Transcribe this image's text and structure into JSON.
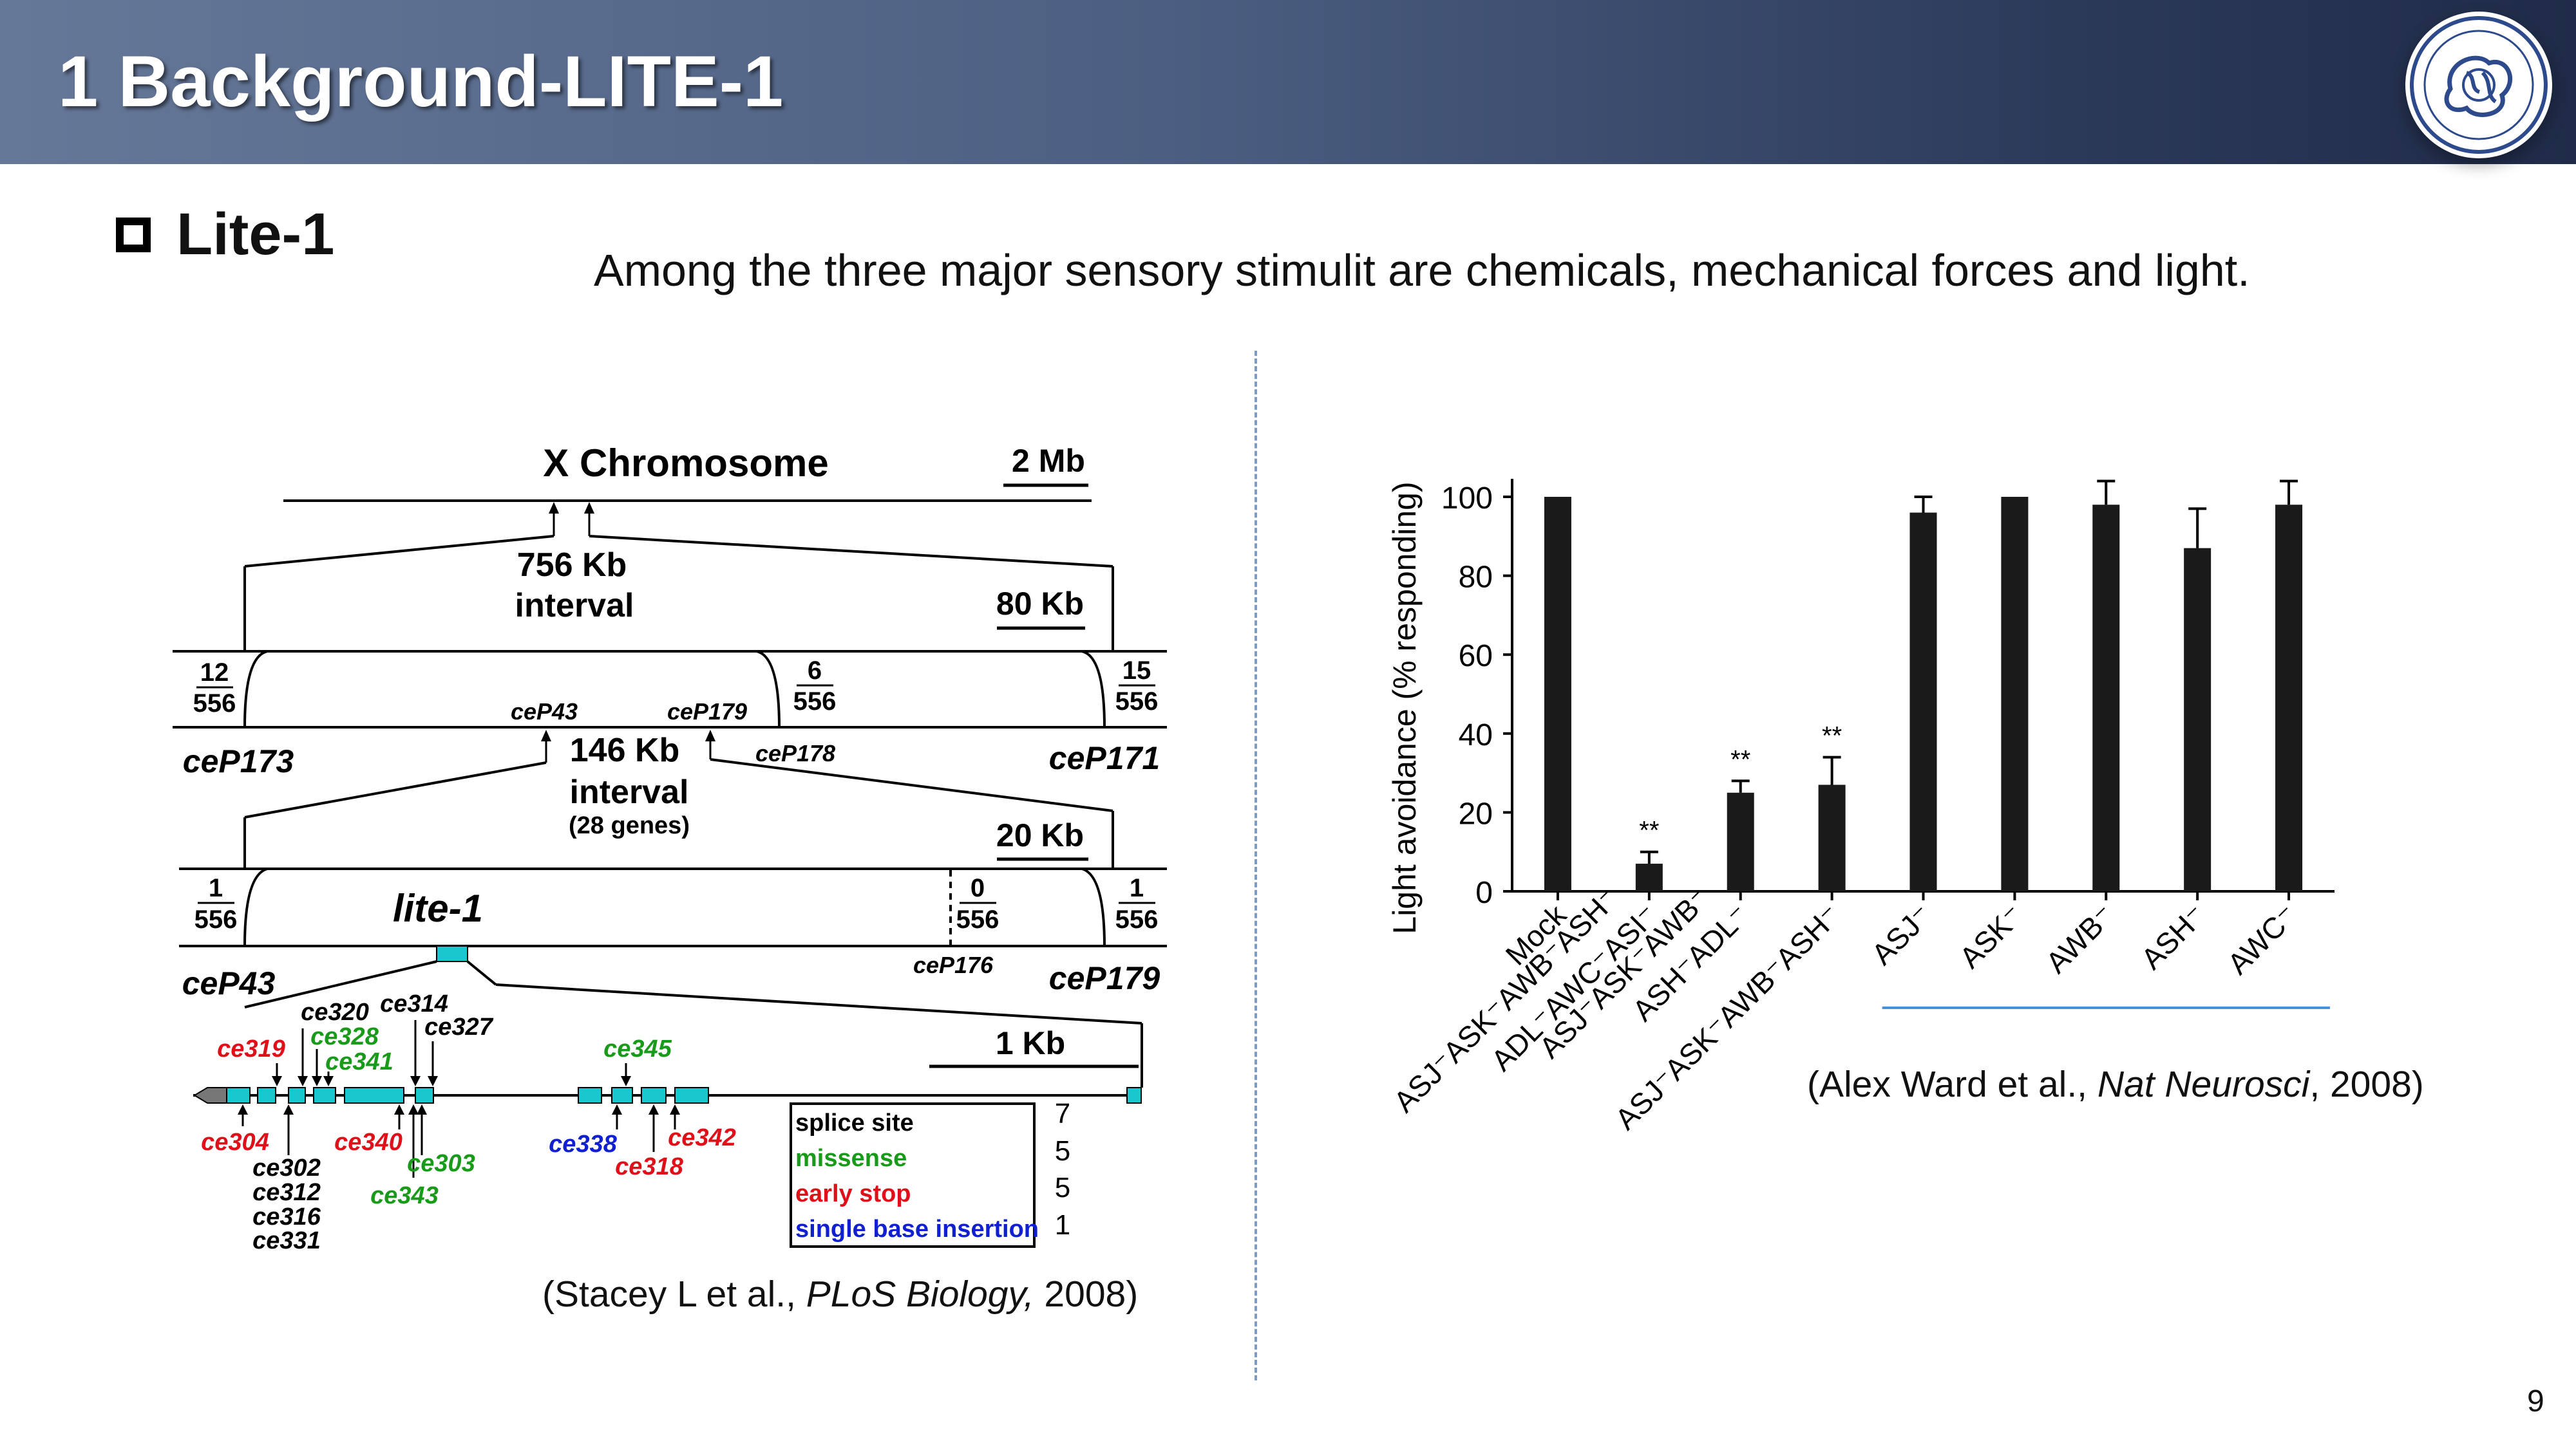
{
  "slide": {
    "title": "1 Background-LITE-1",
    "section_label": "Lite-1",
    "intro": "Among the three major sensory stimulit are chemicals, mechanical forces and light.",
    "page_number": "9"
  },
  "left_figure": {
    "chromosome_title": "X Chromosome",
    "scale_2mb": "2 Mb",
    "interval_756": "756 Kb",
    "interval_word": "interval",
    "scale_80kb": "80 Kb",
    "frac_12_556": [
      "12",
      "556"
    ],
    "frac_6_556": [
      "6",
      "556"
    ],
    "frac_15_556": [
      "15",
      "556"
    ],
    "frac_1_556_left": [
      "1",
      "556"
    ],
    "frac_0_556": [
      "0",
      "556"
    ],
    "frac_1_556_right": [
      "1",
      "556"
    ],
    "marker_ceP43_small": "ceP43",
    "marker_ceP179_small": "ceP179",
    "marker_ceP173": "ceP173",
    "marker_ceP178": "ceP178",
    "marker_ceP171": "ceP171",
    "interval_146": "146 Kb",
    "interval_genes": "(28 genes)",
    "scale_20kb": "20 Kb",
    "gene_name": "lite-1",
    "marker_ceP43": "ceP43",
    "marker_ceP176": "ceP176",
    "marker_ceP179": "ceP179",
    "scale_1kb": "1 Kb",
    "alleles_top_red": [
      "ce319"
    ],
    "alleles_top_green": [
      "ce328",
      "ce341",
      "ce345"
    ],
    "alleles_top_black": [
      "ce320",
      "ce314",
      "ce327"
    ],
    "alleles_bottom_red": [
      "ce304",
      "ce340",
      "ce342",
      "ce318"
    ],
    "alleles_bottom_green": [
      "ce303",
      "ce343"
    ],
    "alleles_bottom_blue": [
      "ce338"
    ],
    "alleles_bottom_black": [
      "ce302",
      "ce312",
      "ce316",
      "ce331"
    ],
    "legend": [
      "splice site",
      "missense",
      "early stop",
      "single base insertion"
    ],
    "legend_colors": [
      "#000000",
      "#1a9a1a",
      "#e0101a",
      "#1020d0"
    ],
    "side_digits": [
      "7",
      "5",
      "5",
      "1"
    ],
    "exon_color": "#19c8cf",
    "caption_authors": "(Stacey L et al., ",
    "caption_journal": "PLoS Biology,",
    "caption_year": " 2008)"
  },
  "chart_data": {
    "type": "bar",
    "categories": [
      "Mock",
      "ASJ⁻ASK⁻AWB⁻ASH⁻ ADL⁻AWC⁻ASI⁻",
      "ASJ⁻ASK⁻AWB⁻ ASH⁻ADL⁻",
      "ASJ⁻ASK⁻AWB⁻ASH⁻",
      "ASJ⁻",
      "ASK⁻",
      "AWB⁻",
      "ASH⁻",
      "AWC⁻"
    ],
    "category_lines": [
      [
        "Mock"
      ],
      [
        "ASJ⁻ASK⁻AWB⁻ASH⁻",
        "ADL⁻AWC⁻ASI⁻"
      ],
      [
        "ASJ⁻ASK⁻AWB⁻",
        "ASH⁻ADL⁻"
      ],
      [
        "ASJ⁻ASK⁻AWB⁻ASH⁻"
      ],
      [
        "ASJ⁻"
      ],
      [
        "ASK⁻"
      ],
      [
        "AWB⁻"
      ],
      [
        "ASH⁻"
      ],
      [
        "AWC⁻"
      ]
    ],
    "values": [
      100,
      7,
      25,
      27,
      96,
      100,
      98,
      87,
      98
    ],
    "errors": [
      0,
      3,
      3,
      7,
      4,
      0,
      6,
      10,
      6
    ],
    "significance": [
      "",
      "**",
      "**",
      "**",
      "",
      "",
      "",
      "",
      ""
    ],
    "ylabel": "Light avoidance (% responding)",
    "yticks": [
      "0",
      "20",
      "40",
      "60",
      "80",
      "100"
    ],
    "ylim": [
      0,
      100
    ],
    "bar_color": "#1a1a1a",
    "grid": false,
    "underline_color": "#4a90d9",
    "caption_authors": "(Alex Ward et al., ",
    "caption_journal": "Nat Neurosci",
    "caption_year": ", 2008)"
  }
}
